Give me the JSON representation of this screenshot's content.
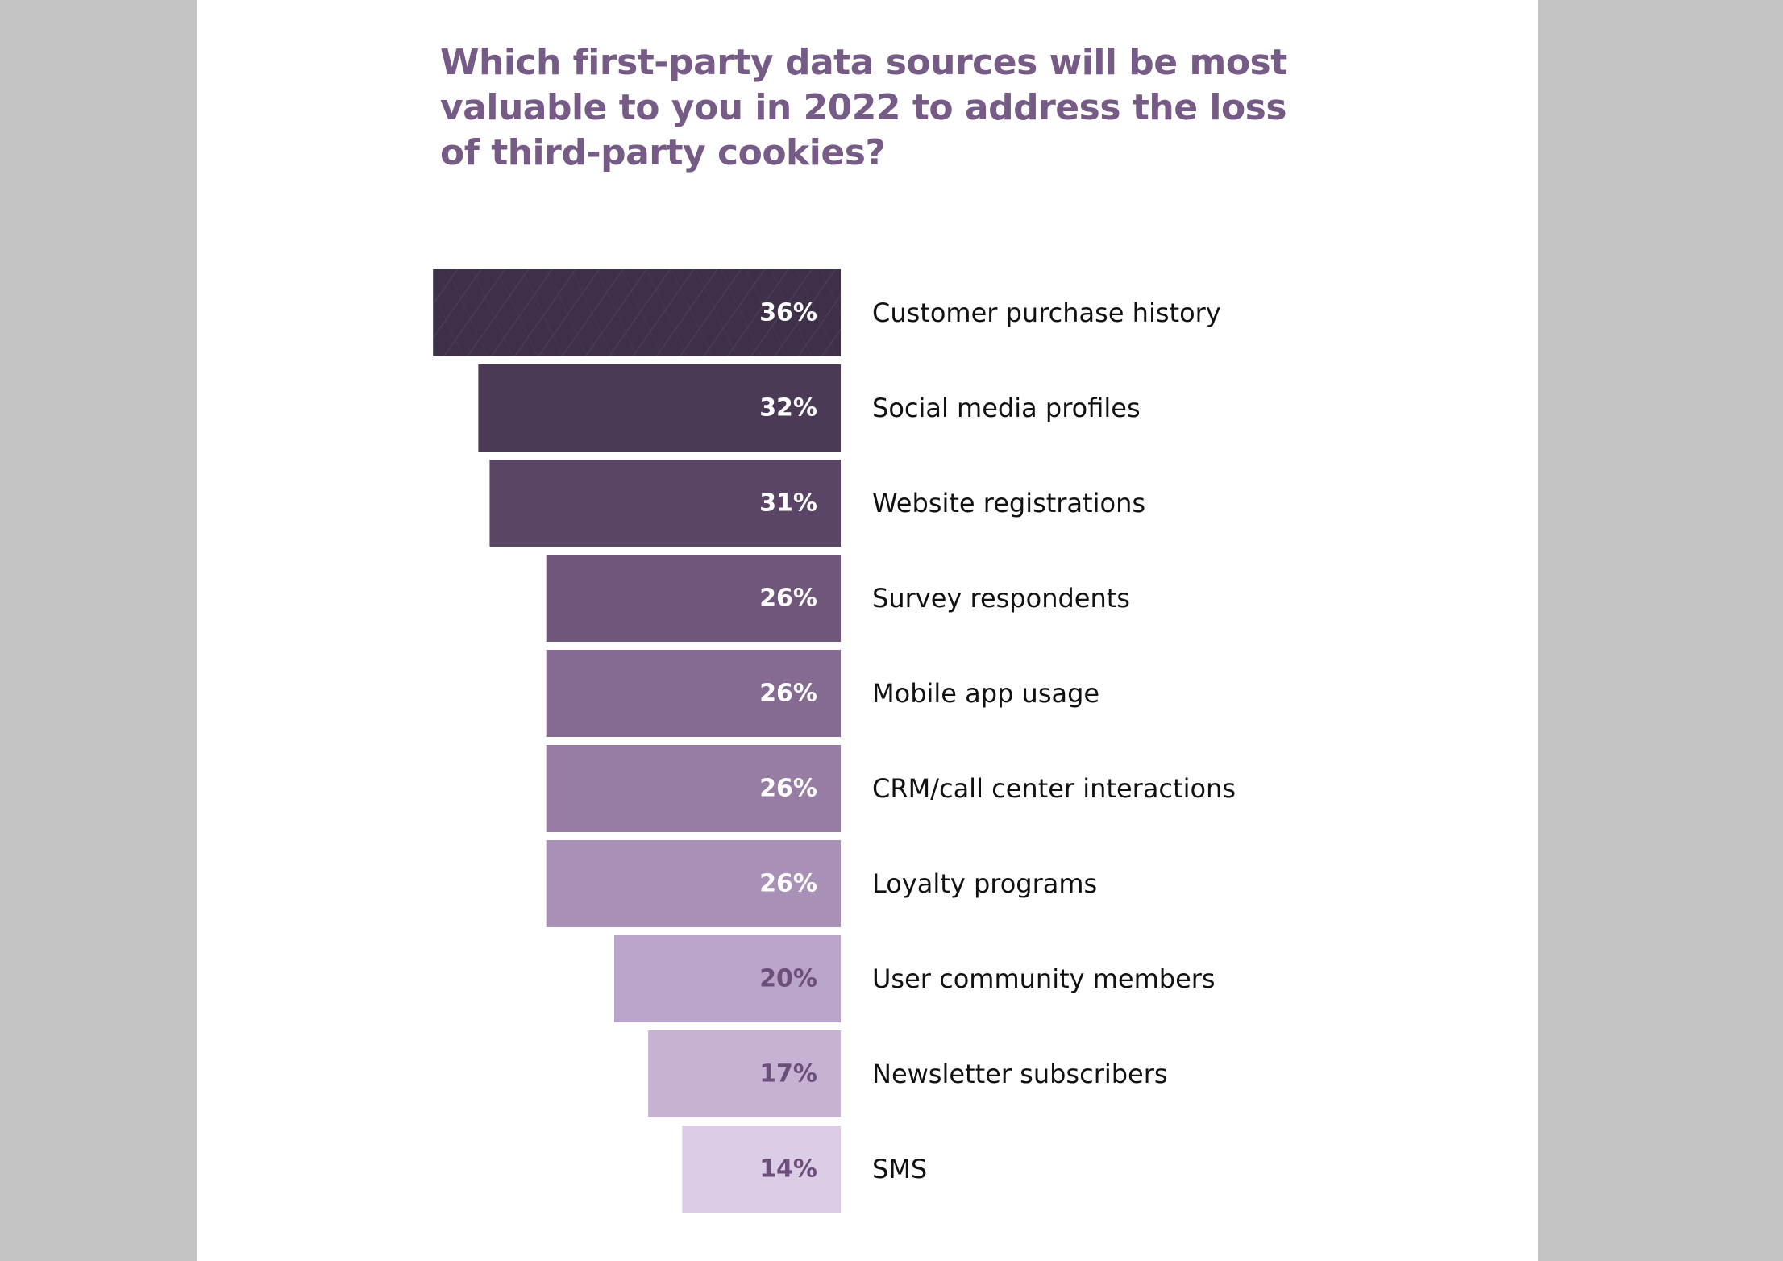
{
  "chart_data": {
    "type": "bar",
    "orientation": "horizontal",
    "title": "Which first-party data sources will be most valuable to you in 2022 to address the loss of third-party cookies?",
    "categories": [
      "Customer purchase history",
      "Social media profiles",
      "Website registrations",
      "Survey respondents",
      "Mobile app usage",
      "CRM/call center interactions",
      "Loyalty programs",
      "User community members",
      "Newsletter subscribers",
      "SMS"
    ],
    "values": [
      36,
      32,
      31,
      26,
      26,
      26,
      26,
      20,
      17,
      14
    ],
    "value_labels": [
      "36%",
      "32%",
      "31%",
      "26%",
      "26%",
      "26%",
      "26%",
      "20%",
      "17%",
      "14%"
    ],
    "unit": "%",
    "bar_colors": [
      "#3e3048",
      "#4a3a56",
      "#5b4566",
      "#6f577b",
      "#856b91",
      "#977ca4",
      "#a990b7",
      "#bba4c9",
      "#c7b2d4",
      "#dccde6"
    ],
    "value_label_colors": [
      "#ffffff",
      "#ffffff",
      "#ffffff",
      "#ffffff",
      "#ffffff",
      "#ffffff",
      "#ffffff",
      "#6b4f7a",
      "#6b4f7a",
      "#6b4f7a"
    ]
  }
}
